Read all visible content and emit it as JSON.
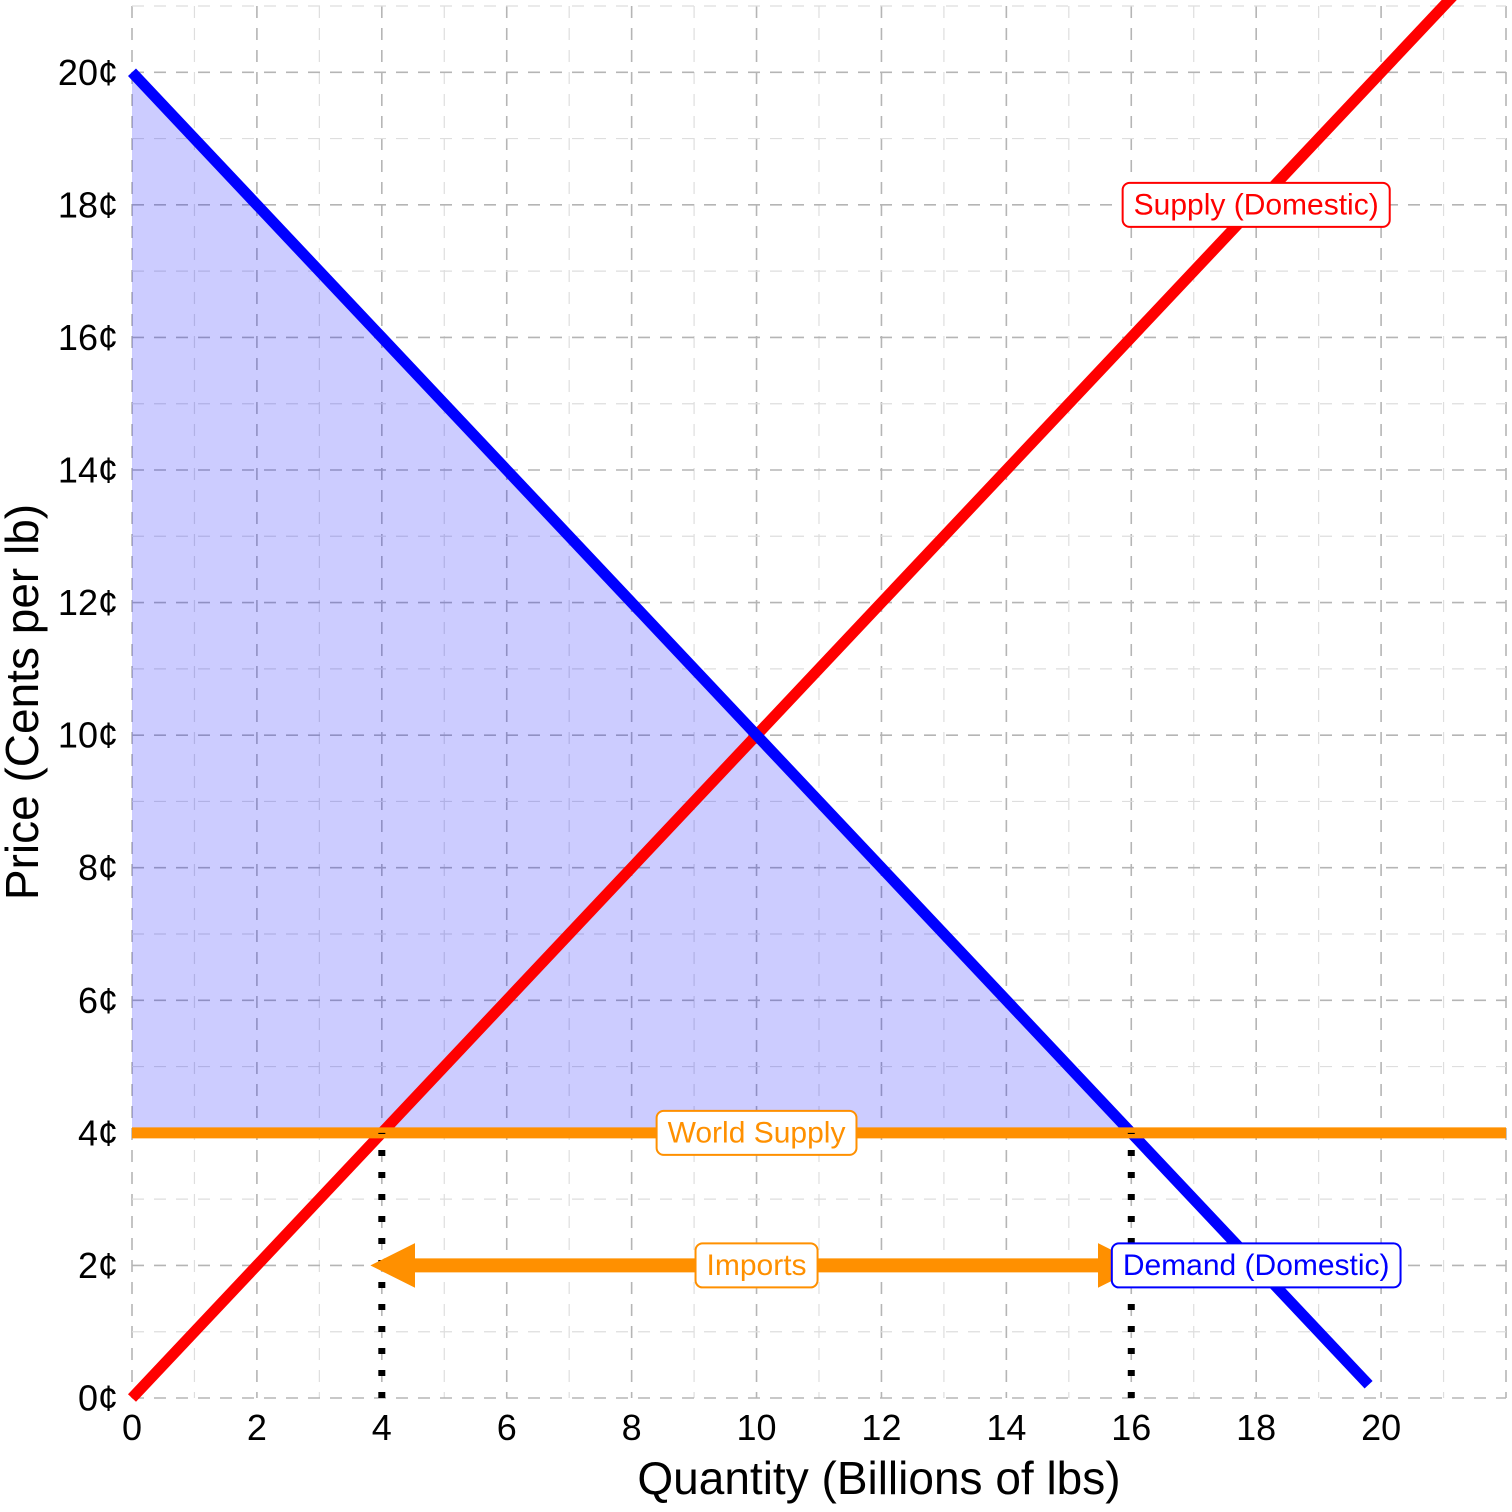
{
  "chart_data": {
    "type": "line",
    "xlabel": "Quantity (Billions of lbs)",
    "ylabel": "Price (Cents per lb)",
    "xlim": [
      0,
      22
    ],
    "ylim": [
      0,
      21
    ],
    "x_ticks": [
      0,
      2,
      4,
      6,
      8,
      10,
      12,
      14,
      16,
      18,
      20
    ],
    "x_tick_labels": [
      "0",
      "2",
      "4",
      "6",
      "8",
      "10",
      "12",
      "14",
      "16",
      "18",
      "20"
    ],
    "y_ticks": [
      0,
      2,
      4,
      6,
      8,
      10,
      12,
      14,
      16,
      18,
      20
    ],
    "y_tick_labels": [
      "0¢",
      "2¢",
      "4¢",
      "6¢",
      "8¢",
      "10¢",
      "12¢",
      "14¢",
      "16¢",
      "18¢",
      "20¢"
    ],
    "grid": true,
    "series": [
      {
        "name": "Supply (Domestic)",
        "color": "#ff0000",
        "points": [
          [
            0,
            0
          ],
          [
            22,
            22
          ]
        ],
        "label_at": [
          18,
          18
        ]
      },
      {
        "name": "Demand (Domestic)",
        "color": "#0000ff",
        "points": [
          [
            0,
            20
          ],
          [
            19.8,
            0.2
          ]
        ],
        "label_at": [
          18,
          2
        ]
      },
      {
        "name": "World Supply",
        "color": "#ff9000",
        "points": [
          [
            0,
            4
          ],
          [
            22,
            4
          ]
        ],
        "label_at": [
          10,
          4
        ]
      }
    ],
    "shaded_area": {
      "description": "consumer surplus",
      "color": "#0000ff",
      "opacity": 0.2,
      "polygon": [
        [
          0,
          20
        ],
        [
          16,
          4
        ],
        [
          0,
          4
        ]
      ]
    },
    "reference_lines": [
      {
        "points": [
          [
            4,
            0
          ],
          [
            4,
            4
          ]
        ],
        "style": "dotted",
        "color": "#000000"
      },
      {
        "points": [
          [
            16,
            0
          ],
          [
            16,
            4
          ]
        ],
        "style": "dotted",
        "color": "#000000"
      }
    ],
    "annotations": [
      {
        "text": "Imports",
        "color": "#ff9000",
        "arrow_from": [
          4,
          2
        ],
        "arrow_to": [
          16,
          2
        ],
        "both_ends": true,
        "label_at": [
          10,
          2
        ]
      }
    ]
  }
}
